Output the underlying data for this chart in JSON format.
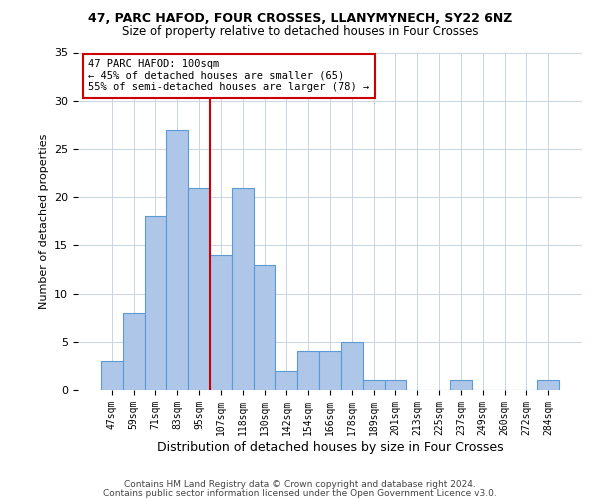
{
  "title1": "47, PARC HAFOD, FOUR CROSSES, LLANYMYNECH, SY22 6NZ",
  "title2": "Size of property relative to detached houses in Four Crosses",
  "xlabel": "Distribution of detached houses by size in Four Crosses",
  "ylabel": "Number of detached properties",
  "categories": [
    "47sqm",
    "59sqm",
    "71sqm",
    "83sqm",
    "95sqm",
    "107sqm",
    "118sqm",
    "130sqm",
    "142sqm",
    "154sqm",
    "166sqm",
    "178sqm",
    "189sqm",
    "201sqm",
    "213sqm",
    "225sqm",
    "237sqm",
    "249sqm",
    "260sqm",
    "272sqm",
    "284sqm"
  ],
  "values": [
    3,
    8,
    18,
    27,
    21,
    14,
    21,
    13,
    2,
    4,
    4,
    5,
    1,
    1,
    0,
    0,
    1,
    0,
    0,
    0,
    1
  ],
  "bar_color": "#aec6e8",
  "bar_edge_color": "#5b9bd5",
  "vline_x_index": 4.5,
  "vline_color": "#cc0000",
  "annotation_text": "47 PARC HAFOD: 100sqm\n← 45% of detached houses are smaller (65)\n55% of semi-detached houses are larger (78) →",
  "annotation_box_color": "#ffffff",
  "annotation_box_edge": "#cc0000",
  "ylim": [
    0,
    35
  ],
  "yticks": [
    0,
    5,
    10,
    15,
    20,
    25,
    30,
    35
  ],
  "footer1": "Contains HM Land Registry data © Crown copyright and database right 2024.",
  "footer2": "Contains public sector information licensed under the Open Government Licence v3.0.",
  "bg_color": "#ffffff",
  "grid_color": "#c8d4e3",
  "title1_fontsize": 9,
  "title2_fontsize": 8.5,
  "ylabel_fontsize": 8,
  "xlabel_fontsize": 9,
  "tick_fontsize": 7,
  "annot_fontsize": 7.5,
  "footer_fontsize": 6.5
}
